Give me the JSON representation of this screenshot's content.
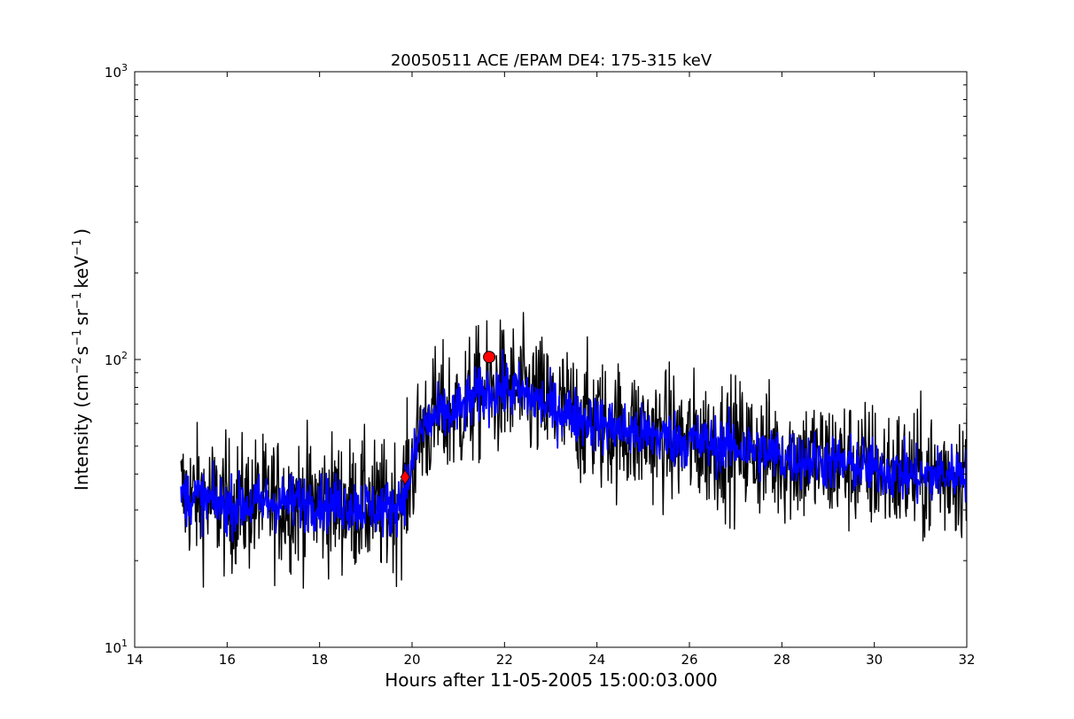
{
  "chart_data": {
    "type": "line",
    "title": "20050511 ACE /EPAM DE4: 175-315 keV",
    "xlabel": "Hours after 11-05-2005 15:00:03.000",
    "ylabel": {
      "prefix": "Intensity (cm",
      "sup1": "−2",
      "mid1": "s",
      "sup2": "−1",
      "mid2": "sr",
      "sup3": "−1",
      "mid3": "keV",
      "sup4": "−1",
      "suffix": ")"
    },
    "xlim": [
      14,
      32
    ],
    "ylim": [
      10,
      1000
    ],
    "yscale": "log",
    "x_ticks": [
      14,
      16,
      18,
      20,
      22,
      24,
      26,
      28,
      30,
      32
    ],
    "x_tick_labels": [
      "14",
      "16",
      "18",
      "20",
      "22",
      "24",
      "26",
      "28",
      "30",
      "32"
    ],
    "y_ticks": [
      10,
      100,
      1000
    ],
    "y_tick_labels": [
      {
        "base": "10",
        "exp": "1"
      },
      {
        "base": "10",
        "exp": "2"
      },
      {
        "base": "10",
        "exp": "3"
      }
    ],
    "grid": false,
    "series": [
      {
        "color": "#000000",
        "x": [
          15.0,
          16.0,
          17.0,
          18.0,
          19.0,
          19.5,
          19.8,
          20.0,
          20.2,
          20.5,
          21.0,
          21.5,
          22.0,
          22.5,
          23.0,
          24.0,
          25.0,
          26.0,
          27.0,
          28.0,
          29.0,
          30.0,
          31.0,
          32.0
        ],
        "y": [
          34,
          31,
          32,
          32,
          31,
          30,
          33,
          42,
          57,
          63,
          66,
          76,
          79,
          75,
          68,
          60,
          55,
          52,
          50,
          46,
          44,
          42,
          39,
          41
        ],
        "spread": 0.33
      },
      {
        "color": "#0000ff",
        "x": [
          15.0,
          16.0,
          17.0,
          18.0,
          19.0,
          19.5,
          19.8,
          20.0,
          20.2,
          20.5,
          21.0,
          21.5,
          22.0,
          22.5,
          23.0,
          24.0,
          25.0,
          26.0,
          27.0,
          28.0,
          29.0,
          30.0,
          31.0,
          32.0
        ],
        "y": [
          34,
          31,
          32,
          32,
          31,
          30,
          33,
          42,
          57,
          63,
          66,
          76,
          79,
          75,
          68,
          60,
          55,
          52,
          50,
          46,
          44,
          42,
          39,
          41
        ],
        "spread": 0.14
      }
    ],
    "markers": [
      {
        "shape": "circle",
        "color": "#ff0000",
        "x": 21.67,
        "y": 102
      },
      {
        "shape": "diamond",
        "color": "#ff0000",
        "x": 19.85,
        "y": 39
      }
    ]
  }
}
